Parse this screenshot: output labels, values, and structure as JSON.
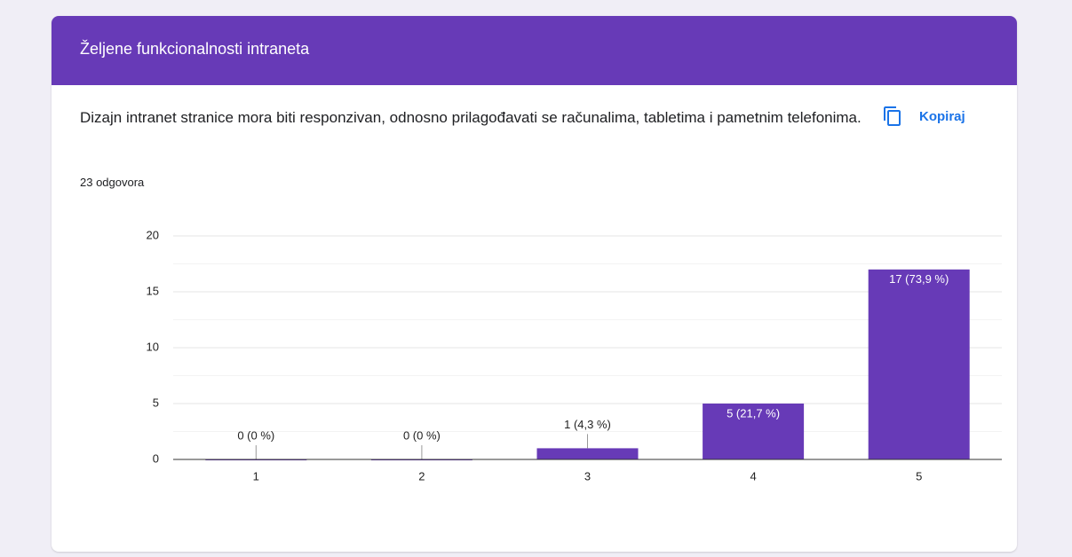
{
  "header": {
    "title": "Željene funkcionalnosti intraneta"
  },
  "question": {
    "text": "Dizajn intranet stranice mora biti responzivan, odnosno prilagođavati se računalima, tabletima i pametnim telefonima.",
    "responses": "23 odgovora",
    "copy_button": "Kopiraj"
  },
  "chart_data": {
    "type": "bar",
    "categories": [
      "1",
      "2",
      "3",
      "4",
      "5"
    ],
    "values": [
      0,
      0,
      1,
      5,
      17
    ],
    "value_labels": [
      "0 (0 %)",
      "0 (0 %)",
      "1 (4,3 %)",
      "5 (21,7 %)",
      "17 (73,9 %)"
    ],
    "color": "#673ab7",
    "ylim": [
      0,
      20
    ],
    "yticks": [
      0,
      5,
      10,
      15,
      20
    ],
    "minor_yticks": [
      2.5,
      7.5,
      12.5,
      17.5
    ],
    "grid": true
  }
}
